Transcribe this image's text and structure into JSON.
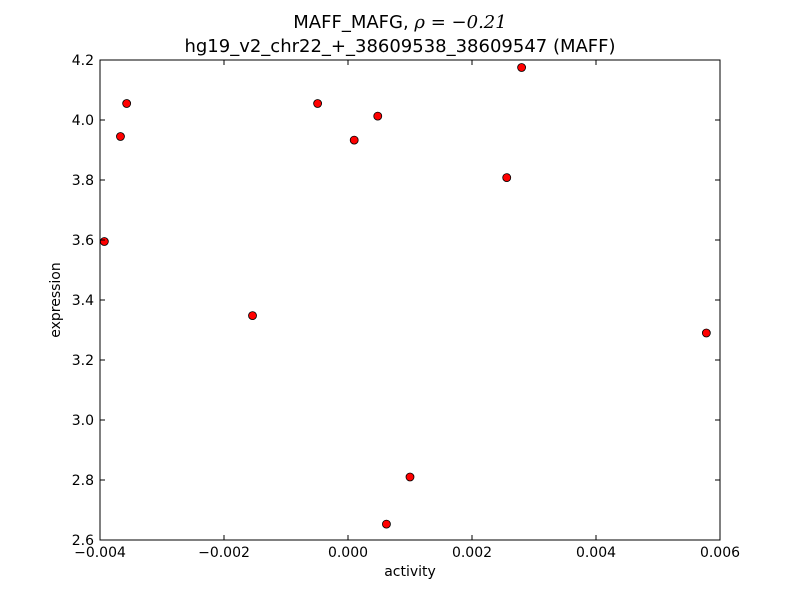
{
  "chart_data": {
    "type": "scatter",
    "title_prefix": "MAFF_MAFG, ",
    "title_rho": "ρ = −0.21",
    "subtitle": "hg19_v2_chr22_+_38609538_38609547 (MAFF)",
    "xlabel": "activity",
    "ylabel": "expression",
    "xlim": [
      -0.004,
      0.006
    ],
    "ylim": [
      2.6,
      4.2
    ],
    "x_ticks": [
      -0.004,
      -0.002,
      0.0,
      0.002,
      0.004,
      0.006
    ],
    "x_tick_labels": [
      "−0.004",
      "−0.002",
      "0.000",
      "0.002",
      "0.004",
      "0.006"
    ],
    "y_ticks": [
      2.6,
      2.8,
      3.0,
      3.2,
      3.4,
      3.6,
      3.8,
      4.0,
      4.2
    ],
    "y_tick_labels": [
      "2.6",
      "2.8",
      "3.0",
      "3.2",
      "3.4",
      "3.6",
      "3.8",
      "4.0",
      "4.2"
    ],
    "grid": false,
    "marker_color": "#ff0000",
    "marker_edge_color": "#000000",
    "points": [
      {
        "x": -0.00393,
        "y": 3.595
      },
      {
        "x": -0.00367,
        "y": 3.945
      },
      {
        "x": -0.00357,
        "y": 4.055
      },
      {
        "x": -0.00154,
        "y": 3.348
      },
      {
        "x": -0.00049,
        "y": 4.055
      },
      {
        "x": 0.0001,
        "y": 3.933
      },
      {
        "x": 0.00048,
        "y": 4.013
      },
      {
        "x": 0.00062,
        "y": 2.653
      },
      {
        "x": 0.001,
        "y": 2.81
      },
      {
        "x": 0.00256,
        "y": 3.808
      },
      {
        "x": 0.0028,
        "y": 4.175
      },
      {
        "x": 0.00578,
        "y": 3.29
      }
    ]
  }
}
